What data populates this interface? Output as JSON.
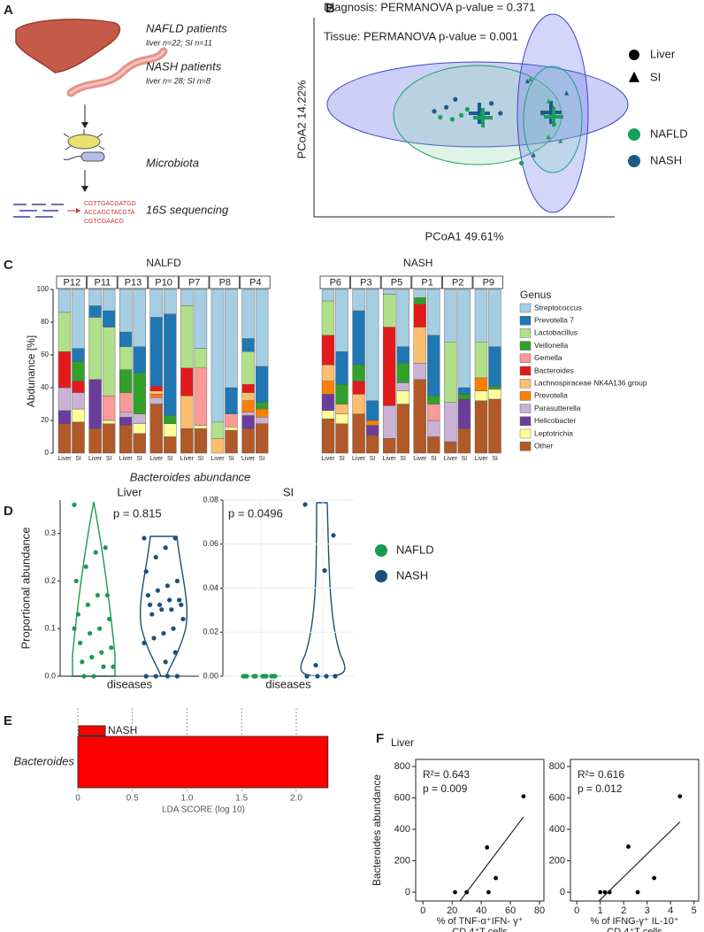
{
  "panel_labels": [
    "A",
    "B",
    "C",
    "D",
    "E",
    "F"
  ],
  "panel_a": {
    "nafld_title": "NAFLD patients",
    "nafld_counts": "liver n=22; SI n=11",
    "nash_title": "NASH patients",
    "nash_counts": "liver n= 28; SI n=8",
    "microbiota": "Microbiota",
    "sequencing": "16S sequencing",
    "sequences": [
      "CGTTGACGATGG",
      "ACCAGCTACGTA",
      "CGTCGAACG"
    ]
  },
  "chart_data": [
    {
      "type": "scatter",
      "annotations": [
        "Diagnosis: PERMANOVA  p-value = 0.371",
        "Tissue: PERMANOVA p-value = 0.001"
      ],
      "xlabel": "PCoA1 49.61%",
      "ylabel": "PCoA2 14.22%",
      "xlim": [
        0,
        1
      ],
      "ylim": [
        0,
        1
      ],
      "series": [
        {
          "color": "#17a05d",
          "marker": "circle",
          "x": [
            0.42,
            0.46,
            0.49,
            0.51,
            0.56,
            0.69
          ],
          "values": [
            0.5,
            0.49,
            0.51,
            0.54,
            0.52,
            0.27
          ]
        },
        {
          "color": "#1b5a8a",
          "marker": "circle",
          "x": [
            0.4,
            0.47,
            0.59,
            0.62,
            0.44
          ],
          "values": [
            0.53,
            0.59,
            0.57,
            0.52,
            0.55
          ]
        },
        {
          "color": "#17a05d",
          "marker": "triangle",
          "x": [
            0.72,
            0.78,
            0.8,
            0.82,
            0.78
          ],
          "values": [
            0.69,
            0.58,
            0.47,
            0.38,
            0.4
          ]
        },
        {
          "color": "#1b5a8a",
          "marker": "triangle",
          "x": [
            0.71,
            0.76,
            0.79,
            0.73,
            0.84
          ],
          "values": [
            0.68,
            0.52,
            0.56,
            0.31,
            0.62
          ]
        }
      ],
      "legend_markers": [
        {
          "label": "Liver",
          "marker": "circle"
        },
        {
          "label": "SI",
          "marker": "triangle"
        }
      ],
      "legend_colors": [
        {
          "label": "NAFLD",
          "color": "#17a05d"
        },
        {
          "label": "NASH",
          "color": "#1b5a8a"
        }
      ]
    },
    {
      "type": "stacked_bar",
      "group_titles": [
        "NALFD",
        "NASH"
      ],
      "patients": [
        "P12",
        "P11",
        "P13",
        "P10",
        "P7",
        "P8",
        "P4",
        "P6",
        "P3",
        "P5",
        "P1",
        "P2",
        "P9"
      ],
      "categories": [
        "Liver",
        "SI",
        "Liver",
        "SI",
        "Liver",
        "SI",
        "Liver",
        "SI",
        "Liver",
        "SI",
        "Liver",
        "SI",
        "Liver",
        "SI",
        "Liver",
        "SI",
        "Liver",
        "SI",
        "Liver",
        "SI",
        "Liver",
        "SI",
        "Liver",
        "SI",
        "Liver",
        "SI"
      ],
      "ylabel": "Abdunance [%]",
      "ylim": [
        0,
        100
      ],
      "yticks": [
        0,
        20,
        40,
        60,
        80,
        100
      ],
      "legend_title": "Genus",
      "series": [
        {
          "name": "Streptococcus",
          "color": "#a6cee3",
          "values": [
            14,
            36,
            10,
            13,
            26,
            35,
            17,
            15,
            10,
            36,
            81,
            60,
            30,
            47,
            7,
            38,
            13,
            68,
            3,
            35,
            5,
            28,
            32,
            60,
            32,
            35
          ]
        },
        {
          "name": "Prevotella 7",
          "color": "#1f78b4",
          "values": [
            0,
            8,
            7,
            10,
            9,
            16,
            42,
            62,
            0,
            0,
            0,
            16,
            8,
            22,
            0,
            20,
            33,
            12,
            0,
            10,
            0,
            37,
            0,
            4,
            0,
            24
          ]
        },
        {
          "name": "Lactobacillus",
          "color": "#b2df8a",
          "values": [
            24,
            0,
            38,
            42,
            14,
            0,
            0,
            0,
            38,
            12,
            10,
            0,
            20,
            0,
            21,
            0,
            0,
            0,
            20,
            0,
            0,
            0,
            37,
            0,
            22,
            0
          ]
        },
        {
          "name": "Veillonella",
          "color": "#33a02c",
          "values": [
            0,
            12,
            0,
            0,
            14,
            25,
            0,
            5,
            0,
            0,
            0,
            0,
            0,
            4,
            0,
            12,
            10,
            0,
            0,
            12,
            4,
            5,
            0,
            3,
            0,
            2
          ]
        },
        {
          "name": "Gemella",
          "color": "#fb9a99",
          "values": [
            0,
            0,
            0,
            15,
            12,
            0,
            0,
            0,
            0,
            35,
            0,
            8,
            0,
            0,
            0,
            0,
            0,
            0,
            0,
            0,
            0,
            10,
            0,
            0,
            0,
            0
          ]
        },
        {
          "name": "Bacteroides",
          "color": "#e31a1c",
          "values": [
            22,
            7,
            0,
            0,
            0,
            0,
            3,
            0,
            17,
            0,
            0,
            0,
            5,
            0,
            18,
            0,
            8,
            0,
            48,
            0,
            14,
            0,
            0,
            0,
            0,
            0
          ]
        },
        {
          "name": "Lachnospiraceae NK4A136 group",
          "color": "#fdbf6f",
          "values": [
            0,
            0,
            0,
            0,
            0,
            0,
            2,
            0,
            20,
            0,
            9,
            0,
            5,
            0,
            10,
            6,
            12,
            0,
            0,
            0,
            22,
            0,
            0,
            0,
            0,
            0
          ]
        },
        {
          "name": "Prevotella",
          "color": "#ff7f00",
          "values": [
            0,
            0,
            0,
            0,
            0,
            0,
            2,
            0,
            0,
            0,
            0,
            0,
            7,
            5,
            8,
            0,
            0,
            3,
            0,
            0,
            0,
            0,
            0,
            0,
            8,
            0
          ]
        },
        {
          "name": "Parasutterella",
          "color": "#cab2d6",
          "values": [
            14,
            10,
            0,
            0,
            3,
            6,
            4,
            0,
            0,
            0,
            0,
            0,
            2,
            4,
            0,
            0,
            0,
            0,
            20,
            5,
            10,
            10,
            24,
            0,
            0,
            0
          ]
        },
        {
          "name": "Helicobacter",
          "color": "#6a3d9a",
          "values": [
            8,
            0,
            30,
            0,
            5,
            0,
            0,
            0,
            0,
            0,
            0,
            0,
            8,
            0,
            10,
            0,
            0,
            6,
            0,
            0,
            0,
            0,
            0,
            18,
            0,
            0
          ]
        },
        {
          "name": "Leptotrichia",
          "color": "#ffff99",
          "values": [
            0,
            8,
            0,
            2,
            0,
            6,
            0,
            8,
            0,
            2,
            0,
            2,
            0,
            0,
            5,
            6,
            0,
            0,
            0,
            8,
            0,
            0,
            0,
            0,
            6,
            6
          ]
        },
        {
          "name": "Other",
          "color": "#b15928",
          "values": [
            18,
            19,
            15,
            18,
            17,
            12,
            30,
            10,
            15,
            15,
            0,
            14,
            15,
            18,
            21,
            18,
            24,
            11,
            9,
            30,
            45,
            10,
            7,
            15,
            32,
            33
          ]
        }
      ]
    },
    {
      "type": "strip",
      "title": "Bacteroides abundance",
      "subtitle": "Liver",
      "annotation": "p = 0.815",
      "ylabel": "Proportional abundance",
      "xlabel": "diseases",
      "ylim": [
        0,
        0.37
      ],
      "yticks": [
        {
          "value": 0,
          "label": "0.0"
        },
        0.1,
        0.2,
        0.3
      ],
      "series": [
        {
          "name": "NAFLD",
          "color": "#1a9a50",
          "values": [
            0.36,
            0.27,
            0.26,
            0.23,
            0.2,
            0.17,
            0.17,
            0.15,
            0.13,
            0.12,
            0.1,
            0.09,
            0.07,
            0.06,
            0.05,
            0.04,
            0.03,
            0.02,
            0.02,
            0,
            0,
            0.1
          ]
        },
        {
          "name": "NASH",
          "color": "#1b4f7a",
          "values": [
            0.29,
            0.29,
            0.27,
            0.25,
            0.22,
            0.2,
            0.19,
            0.18,
            0.17,
            0.16,
            0.16,
            0.15,
            0.15,
            0.15,
            0.14,
            0.14,
            0.13,
            0.12,
            0.1,
            0.09,
            0.08,
            0.07,
            0.05,
            0.03,
            0,
            0,
            0,
            0
          ]
        }
      ]
    },
    {
      "type": "strip",
      "subtitle": "SI",
      "annotation": "p = 0.0496",
      "xlabel": "diseases",
      "ylim": [
        0,
        0.08
      ],
      "yticks": [
        {
          "value": 0,
          "label": "0.00"
        },
        0.02,
        0.04,
        0.06,
        0.08
      ],
      "grid": true,
      "series": [
        {
          "color": "#1a9a50",
          "values": [
            0,
            0,
            0,
            0,
            0,
            0,
            0,
            0,
            0,
            0,
            0
          ]
        },
        {
          "color": "#1b4f7a",
          "values": [
            0.078,
            0.064,
            0.048,
            0.005,
            0,
            0,
            0,
            0
          ]
        }
      ]
    },
    {
      "type": "hbar",
      "categories": [
        "Bacteroides"
      ],
      "series": [
        {
          "name": "NASH",
          "color": "#ff0000",
          "values": [
            2.29
          ]
        }
      ],
      "xlim": [
        0,
        2.3
      ],
      "xticks": [
        0,
        0.5,
        {
          "value": 1,
          "label": "1.0"
        },
        1.5,
        {
          "value": 2,
          "label": "2.0"
        }
      ],
      "xlabel": "LDA SCORE (log 10)",
      "grid": true
    },
    {
      "type": "scatter",
      "title": "Liver",
      "ylabel": "Bacteroides  abundance",
      "annotations": [
        "R²= 0.643",
        "p = 0.009"
      ],
      "xlabel": [
        "% of TNF-α⁺IFN- γ⁺",
        "CD 4⁺T cells"
      ],
      "xlim": [
        -5,
        83
      ],
      "ylim": [
        -56,
        845
      ],
      "xticks": [
        0,
        20,
        40,
        60,
        80
      ],
      "yticks": [
        0,
        200,
        400,
        600,
        800
      ],
      "trendline": true,
      "series": [
        {
          "color": "#000000",
          "marker": "circle",
          "x": [
            22,
            30,
            45,
            44,
            50,
            69
          ],
          "values": [
            0,
            0,
            0,
            285,
            90,
            610
          ]
        }
      ]
    },
    {
      "type": "scatter",
      "ylabel": "",
      "annotations": [
        "R²= 0.616",
        "p = 0.012"
      ],
      "xlabel": [
        "% of IFNG-γ⁺ IL-10⁺",
        "CD 4⁺T cells"
      ],
      "xlim": [
        -0.27,
        5.2
      ],
      "ylim": [
        -56,
        845
      ],
      "xticks": [
        0,
        1,
        2,
        3,
        4,
        5
      ],
      "yticks": [
        0,
        200,
        400,
        600,
        800
      ],
      "trendline": true,
      "series": [
        {
          "color": "#000000",
          "marker": "circle",
          "x": [
            1,
            1.2,
            1.4,
            2.2,
            2.6,
            3.3,
            4.4
          ],
          "values": [
            0,
            0,
            0,
            290,
            0,
            90,
            610
          ]
        }
      ]
    }
  ]
}
